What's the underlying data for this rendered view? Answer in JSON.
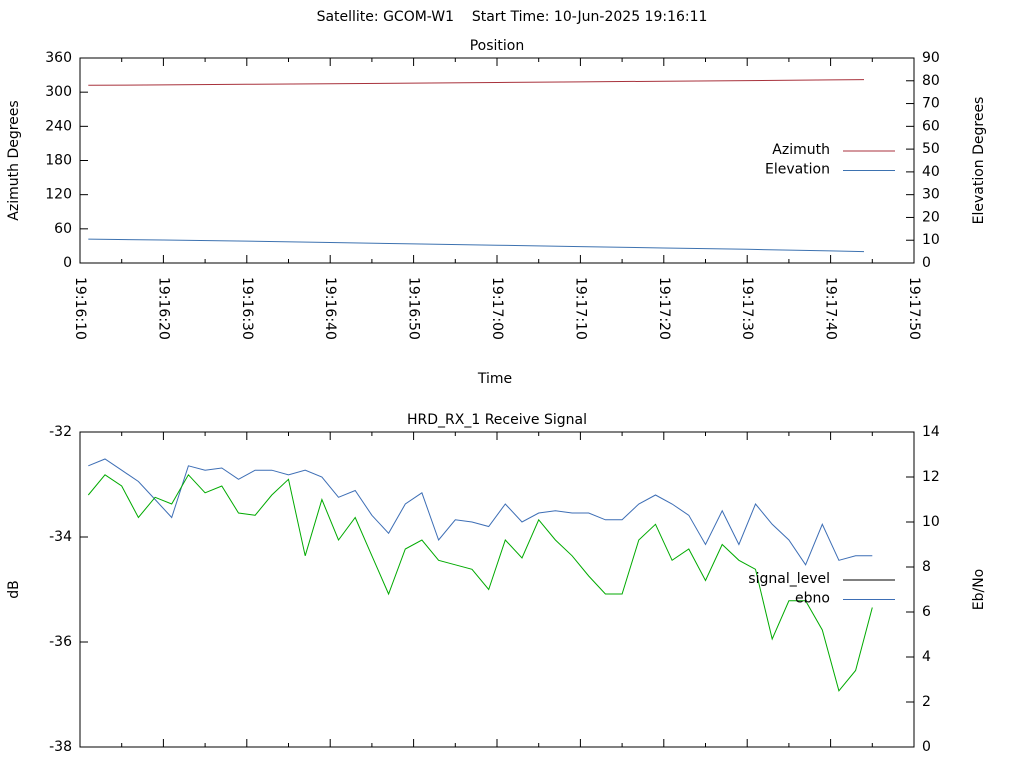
{
  "title": "Satellite: GCOM-W1    Start Time: 10-Jun-2025 19:16:11",
  "chart_data": [
    {
      "type": "line",
      "title": "Position",
      "x_label": "Time",
      "y_label": "Azimuth Degrees",
      "y2_label": "Elevation Degrees",
      "x": [
        "19:16:11",
        "19:16:20",
        "19:16:30",
        "19:16:40",
        "19:16:50",
        "19:17:00",
        "19:17:10",
        "19:17:20",
        "19:17:30",
        "19:17:40",
        "19:17:44"
      ],
      "xlim": [
        "19:16:10",
        "19:17:50"
      ],
      "xticks": [
        "19:16:10",
        "19:16:20",
        "19:16:30",
        "19:16:40",
        "19:16:50",
        "19:17:00",
        "19:17:10",
        "19:17:20",
        "19:17:30",
        "19:17:40",
        "19:17:50"
      ],
      "ylim": [
        0,
        360
      ],
      "yticks": [
        0,
        60,
        120,
        180,
        240,
        300,
        360
      ],
      "y2lim": [
        0,
        90
      ],
      "y2ticks": [
        0,
        10,
        20,
        30,
        40,
        50,
        60,
        70,
        80,
        90
      ],
      "series": [
        {
          "name": "Azimuth",
          "color": "#a8323c",
          "values": [
            312,
            312.8,
            313.8,
            314.8,
            315.9,
            317,
            318.1,
            319.2,
            320.3,
            321.5,
            322
          ]
        },
        {
          "name": "Elevation",
          "color": "#3d72b0",
          "axis": "y2",
          "values": [
            10.5,
            10.1,
            9.6,
            9.0,
            8.4,
            7.8,
            7.2,
            6.6,
            6.0,
            5.3,
            5.0
          ]
        }
      ]
    },
    {
      "type": "line",
      "title": "HRD_RX_1 Receive Signal",
      "y_label": "dB",
      "y2_label": "Eb/No",
      "x": [
        "19:16:11",
        "19:16:13",
        "19:16:15",
        "19:16:17",
        "19:16:19",
        "19:16:21",
        "19:16:23",
        "19:16:25",
        "19:16:27",
        "19:16:29",
        "19:16:31",
        "19:16:33",
        "19:16:35",
        "19:16:37",
        "19:16:39",
        "19:16:41",
        "19:16:43",
        "19:16:45",
        "19:16:47",
        "19:16:49",
        "19:16:51",
        "19:16:53",
        "19:16:55",
        "19:16:57",
        "19:16:59",
        "19:17:01",
        "19:17:03",
        "19:17:05",
        "19:17:07",
        "19:17:09",
        "19:17:11",
        "19:17:13",
        "19:17:15",
        "19:17:17",
        "19:17:19",
        "19:17:21",
        "19:17:23",
        "19:17:25",
        "19:17:27",
        "19:17:29",
        "19:17:31",
        "19:17:33",
        "19:17:35",
        "19:17:37",
        "19:17:39",
        "19:17:41",
        "19:17:43",
        "19:17:45"
      ],
      "xlim": [
        "19:16:10",
        "19:17:50"
      ],
      "ylim": [
        -38,
        -32
      ],
      "yticks": [
        -38,
        -36,
        -34,
        -32
      ],
      "y2lim": [
        0,
        14
      ],
      "y2ticks": [
        0,
        2,
        4,
        6,
        8,
        10,
        12,
        14
      ],
      "series": [
        {
          "name": "signal_level",
          "color": "#000000",
          "values": [
            null,
            null,
            null,
            null,
            null,
            null,
            null,
            null,
            null,
            null,
            null,
            null,
            null,
            null,
            null,
            null,
            null,
            null,
            null,
            null,
            null,
            null,
            null,
            null,
            null,
            null,
            null,
            null,
            null,
            null,
            null,
            null,
            null,
            null,
            null,
            null,
            null,
            null,
            null,
            null,
            null,
            null,
            null,
            null,
            null,
            null,
            null,
            null
          ]
        },
        {
          "name": "ebno",
          "color": "#3d6eb5",
          "axis": "y2",
          "values": [
            12.5,
            12.8,
            12.3,
            11.8,
            11.0,
            10.2,
            12.5,
            12.3,
            12.4,
            11.9,
            12.3,
            12.3,
            12.1,
            12.3,
            12.0,
            11.1,
            11.4,
            10.3,
            9.5,
            10.8,
            11.3,
            9.2,
            10.1,
            10.0,
            9.8,
            10.8,
            10.0,
            10.4,
            10.5,
            10.4,
            10.4,
            10.1,
            10.1,
            10.8,
            11.2,
            10.8,
            10.3,
            9.0,
            10.5,
            9.0,
            10.8,
            9.9,
            9.2,
            8.1,
            9.9,
            8.3,
            8.5,
            8.5
          ]
        },
        {
          "color": "#00aa00",
          "axis": "y2",
          "values": [
            11.2,
            12.1,
            11.6,
            10.2,
            11.1,
            10.8,
            12.1,
            11.3,
            11.6,
            10.4,
            10.3,
            11.2,
            11.9,
            8.5,
            11.0,
            9.2,
            10.2,
            8.5,
            6.8,
            8.8,
            9.2,
            8.3,
            8.1,
            7.9,
            7.0,
            9.2,
            8.4,
            10.1,
            9.2,
            8.5,
            7.6,
            6.8,
            6.8,
            9.2,
            9.9,
            8.3,
            8.8,
            7.4,
            9.0,
            8.3,
            7.9,
            4.8,
            6.5,
            6.5,
            5.2,
            2.5,
            3.4,
            6.2
          ]
        }
      ]
    }
  ]
}
